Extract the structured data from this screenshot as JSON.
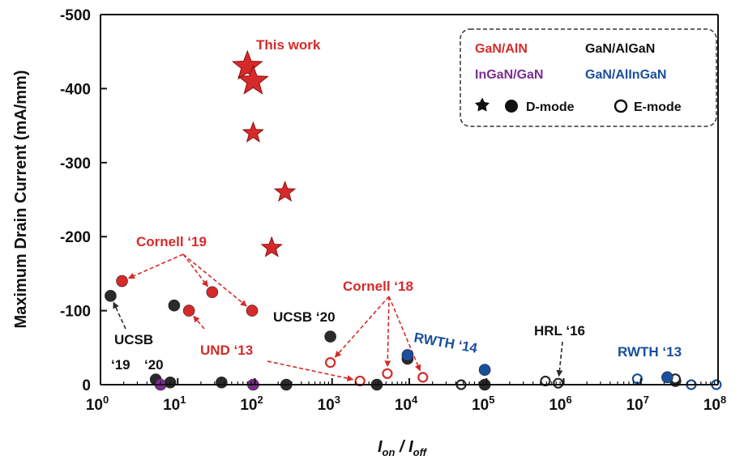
{
  "chart_data": {
    "type": "scatter",
    "xlabel": {
      "main1": "I",
      "sub1": "on",
      "sep": " / ",
      "main2": "I",
      "sub2": "off"
    },
    "ylabel": "Maximum Drain Current (mA/mm)",
    "x_scale": "log",
    "xlim": [
      1,
      100000000
    ],
    "ylim": [
      0,
      -500
    ],
    "x_ticks": [
      {
        "value": 1,
        "base": "10",
        "exp": "0"
      },
      {
        "value": 10,
        "base": "10",
        "exp": "1"
      },
      {
        "value": 100,
        "base": "10",
        "exp": "2"
      },
      {
        "value": 1000,
        "base": "10",
        "exp": "3"
      },
      {
        "value": 10000,
        "base": "10",
        "exp": "4"
      },
      {
        "value": 100000,
        "base": "10",
        "exp": "5"
      },
      {
        "value": 1000000,
        "base": "10",
        "exp": "6"
      },
      {
        "value": 10000000,
        "base": "10",
        "exp": "7"
      },
      {
        "value": 100000000,
        "base": "10",
        "exp": "8"
      }
    ],
    "y_ticks": [
      {
        "value": 0,
        "label": "0"
      },
      {
        "value": -100,
        "label": "-100"
      },
      {
        "value": -200,
        "label": "-200"
      },
      {
        "value": -300,
        "label": "-300"
      },
      {
        "value": -400,
        "label": "-400"
      },
      {
        "value": -500,
        "label": "-500"
      }
    ],
    "grid": false,
    "colors": {
      "red": "#d62a2a",
      "black": "#2a2a2a",
      "purple": "#7b2d8e",
      "blue": "#1a4f9c"
    },
    "series": [
      {
        "color": "red",
        "marker": "star",
        "fill": "filled",
        "points": [
          [
            80,
            -430
          ],
          [
            95,
            -410
          ],
          [
            95,
            -340
          ],
          [
            245,
            -260
          ],
          [
            165,
            -185
          ]
        ]
      },
      {
        "color": "red",
        "marker": "circle",
        "fill": "filled",
        "points": [
          [
            1.9,
            -140
          ],
          [
            28,
            -125
          ],
          [
            14,
            -100
          ],
          [
            92,
            -100
          ]
        ]
      },
      {
        "color": "red",
        "marker": "circle",
        "fill": "open",
        "points": [
          [
            950,
            -30
          ],
          [
            2300,
            -5
          ],
          [
            5200,
            -15
          ],
          [
            15000,
            -10
          ]
        ]
      },
      {
        "color": "black",
        "marker": "circle",
        "fill": "filled",
        "points": [
          [
            1.35,
            -120
          ],
          [
            9,
            -107
          ],
          [
            5.2,
            -7
          ],
          [
            8,
            -3
          ],
          [
            37,
            -3
          ],
          [
            255,
            0
          ],
          [
            950,
            -65
          ],
          [
            3800,
            0
          ],
          [
            9500,
            -35
          ],
          [
            95000,
            0
          ],
          [
            28000000,
            -5
          ]
        ]
      },
      {
        "color": "black",
        "marker": "circle",
        "fill": "open",
        "points": [
          [
            47000,
            0
          ],
          [
            580000,
            -5
          ],
          [
            850000,
            -2
          ],
          [
            28000000,
            -8
          ]
        ]
      },
      {
        "color": "purple",
        "marker": "circle",
        "fill": "filled",
        "points": [
          [
            6,
            0
          ],
          [
            95,
            0
          ]
        ]
      },
      {
        "color": "blue",
        "marker": "circle",
        "fill": "filled",
        "points": [
          [
            9500,
            -40
          ],
          [
            95000,
            -20
          ],
          [
            22000000,
            -10
          ]
        ]
      },
      {
        "color": "blue",
        "marker": "circle",
        "fill": "open",
        "points": [
          [
            9000000,
            -8
          ],
          [
            45000000,
            0
          ],
          [
            95000000,
            0
          ]
        ]
      }
    ],
    "annotations": [
      {
        "text": "This work",
        "color": "red"
      },
      {
        "text": "Cornell ‘19",
        "color": "red"
      },
      {
        "text": "Cornell ‘18",
        "color": "red"
      },
      {
        "text": "UND ‘13",
        "color": "red"
      },
      {
        "text": "UCSB ‘20",
        "color": "black"
      },
      {
        "text": "UCSB",
        "color": "black"
      },
      {
        "text": "‘19",
        "color": "black"
      },
      {
        "text": "‘20",
        "color": "black"
      },
      {
        "text": "HRL ‘16",
        "color": "black"
      },
      {
        "text": "RWTH ‘14",
        "color": "blue"
      },
      {
        "text": "RWTH ‘13",
        "color": "blue"
      }
    ],
    "legend": {
      "position": "top-right",
      "entries": [
        {
          "text": "GaN/AlN",
          "color": "red"
        },
        {
          "text": "GaN/AlGaN",
          "color": "black"
        },
        {
          "text": "InGaN/GaN",
          "color": "purple"
        },
        {
          "text": "GaN/AlInGaN",
          "color": "blue"
        },
        {
          "text": "D-mode",
          "color": "black"
        },
        {
          "text": "E-mode",
          "color": "black"
        }
      ]
    }
  }
}
